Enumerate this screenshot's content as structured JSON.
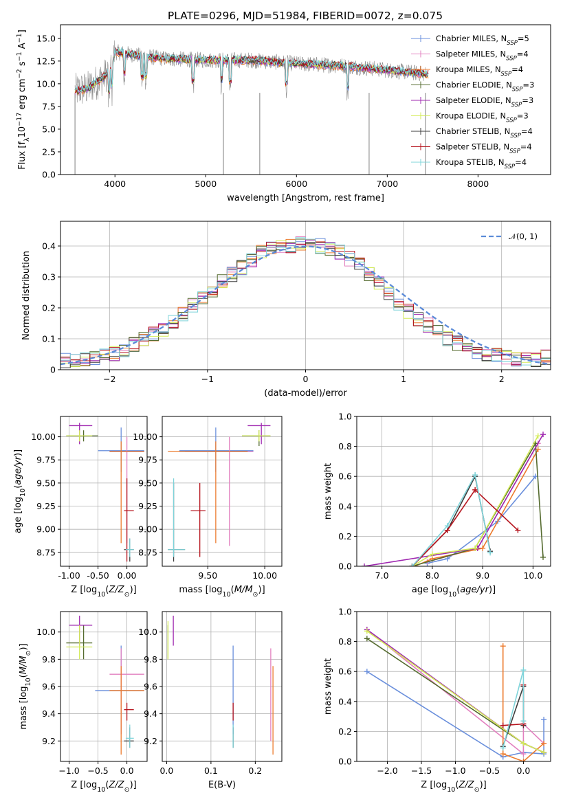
{
  "colors": {
    "Chabrier MILES": "#6a8fdc",
    "Salpeter MILES": "#e27fbf",
    "Kroupa MILES": "#ec7a2c",
    "Chabrier ELODIE": "#556b2f",
    "Salpeter ELODIE": "#9f28b0",
    "Kroupa ELODIE": "#d3eb57",
    "Chabrier STELIB": "#3d3d3d",
    "Salpeter STELIB": "#b5121b",
    "Kroupa STELIB": "#7fd4da",
    "data": "#8c8c8c"
  },
  "chart_data": [
    {
      "id": "spectrum",
      "type": "line",
      "title": "PLATE=0296, MJD=51984, FIBERID=0072, z=0.075",
      "xlabel": "wavelength [Angstrom, rest frame]",
      "ylabel": "Flux [f_λ 10^-17 erg cm^-2 s^-1 A^-1]",
      "xlim": [
        3400,
        8800
      ],
      "ylim": [
        0,
        16.5
      ],
      "xticks": [
        4000,
        5000,
        6000,
        7000,
        8000
      ],
      "yticks": [
        0.0,
        2.5,
        5.0,
        7.5,
        10.0,
        12.5,
        15.0
      ],
      "legend_placement": "top-right",
      "legend": [
        {
          "name": "Chabrier MILES",
          "nssp": "5"
        },
        {
          "name": "Salpeter MILES",
          "nssp": "4"
        },
        {
          "name": "Kroupa MILES",
          "nssp": "4"
        },
        {
          "name": "Chabrier ELODIE",
          "nssp": "3"
        },
        {
          "name": "Salpeter ELODIE",
          "nssp": "3"
        },
        {
          "name": "Kroupa ELODIE",
          "nssp": "3"
        },
        {
          "name": "Chabrier STELIB",
          "nssp": "4"
        },
        {
          "name": "Salpeter STELIB",
          "nssp": "4"
        },
        {
          "name": "Kroupa STELIB",
          "nssp": "4"
        }
      ],
      "data_continuum": [
        [
          3560,
          9.2
        ],
        [
          3700,
          9.5
        ],
        [
          3850,
          10.5
        ],
        [
          3950,
          11.5
        ],
        [
          4000,
          13.5
        ],
        [
          4200,
          13.2
        ],
        [
          4500,
          12.8
        ],
        [
          5000,
          12.6
        ],
        [
          5500,
          12.6
        ],
        [
          6000,
          12.2
        ],
        [
          6500,
          12.0
        ],
        [
          7000,
          11.5
        ],
        [
          7500,
          11.0
        ],
        [
          8000,
          10.6
        ],
        [
          8500,
          10.1
        ],
        [
          8800,
          9.9
        ]
      ]
    },
    {
      "id": "residuals",
      "type": "line",
      "xlabel": "(data-model)/error",
      "ylabel": "Normed distribution",
      "xlim": [
        -2.5,
        2.5
      ],
      "ylim": [
        0,
        0.48
      ],
      "xticks": [
        -2,
        -1,
        0,
        1,
        2
      ],
      "yticks": [
        0.0,
        0.1,
        0.2,
        0.3,
        0.4
      ],
      "reference_curve": "N(0,1)",
      "reference_label": "𝒩(0, 1)",
      "legend_placement": "top-right",
      "hist_centers": [
        -2.45,
        -2.35,
        -2.25,
        -2.15,
        -2.05,
        -1.95,
        -1.85,
        -1.75,
        -1.65,
        -1.55,
        -1.45,
        -1.35,
        -1.25,
        -1.15,
        -1.05,
        -0.95,
        -0.85,
        -0.75,
        -0.65,
        -0.55,
        -0.45,
        -0.35,
        -0.25,
        -0.15,
        -0.05,
        0.05,
        0.15,
        0.25,
        0.35,
        0.45,
        0.55,
        0.65,
        0.75,
        0.85,
        0.95,
        1.05,
        1.15,
        1.25,
        1.35,
        1.45,
        1.55,
        1.65,
        1.75,
        1.85,
        1.95,
        2.05,
        2.15,
        2.25,
        2.35,
        2.45
      ],
      "hist_base": [
        0.03,
        0.028,
        0.034,
        0.04,
        0.048,
        0.05,
        0.066,
        0.08,
        0.1,
        0.115,
        0.128,
        0.155,
        0.18,
        0.21,
        0.23,
        0.26,
        0.29,
        0.31,
        0.33,
        0.35,
        0.38,
        0.39,
        0.4,
        0.4,
        0.405,
        0.41,
        0.4,
        0.395,
        0.38,
        0.36,
        0.34,
        0.31,
        0.28,
        0.25,
        0.215,
        0.19,
        0.165,
        0.145,
        0.12,
        0.1,
        0.085,
        0.07,
        0.06,
        0.05,
        0.045,
        0.04,
        0.036,
        0.034,
        0.034,
        0.04
      ]
    },
    {
      "id": "age_vs_Z",
      "type": "scatter",
      "xlabel": "Z [log10(Z/Z⊙)]",
      "ylabel": "age  [log10(age/yr)]",
      "xlim": [
        -1.15,
        0.35
      ],
      "ylim": [
        8.6,
        10.22
      ],
      "xticks": [
        -1.0,
        -0.5,
        0.0
      ],
      "yticks": [
        8.75,
        9.0,
        9.25,
        9.5,
        9.75,
        10.0
      ],
      "points": [
        {
          "s": "Chabrier MILES",
          "x": -0.1,
          "y": 9.85,
          "xe": [
            -0.5,
            0.3
          ],
          "ye": [
            9.62,
            10.1
          ]
        },
        {
          "s": "Salpeter MILES",
          "x": 0.0,
          "y": 9.84,
          "xe": [
            -0.3,
            0.3
          ],
          "ye": [
            8.85,
            10.0
          ]
        },
        {
          "s": "Kroupa MILES",
          "x": -0.1,
          "y": 9.84,
          "xe": [
            -0.3,
            0.3
          ],
          "ye": [
            8.85,
            9.95
          ]
        },
        {
          "s": "Chabrier ELODIE",
          "x": -0.75,
          "y": 10.01,
          "xe": [
            -1.05,
            -0.5
          ],
          "ye": [
            9.95,
            10.07
          ]
        },
        {
          "s": "Salpeter ELODIE",
          "x": -0.82,
          "y": 10.12,
          "xe": [
            -1.0,
            -0.6
          ],
          "ye": [
            9.92,
            10.15
          ]
        },
        {
          "s": "Kroupa ELODIE",
          "x": -0.82,
          "y": 10.01,
          "xe": [
            -1.05,
            -0.6
          ],
          "ye": [
            9.95,
            10.07
          ]
        },
        {
          "s": "Chabrier STELIB",
          "x": 0.05,
          "y": 8.78,
          "xe": [
            -0.05,
            0.12
          ],
          "ye": [
            8.65,
            8.9
          ]
        },
        {
          "s": "Salpeter STELIB",
          "x": 0.0,
          "y": 9.2,
          "xe": [
            -0.05,
            0.12
          ],
          "ye": [
            8.65,
            9.55
          ]
        },
        {
          "s": "Kroupa STELIB",
          "x": 0.05,
          "y": 8.78,
          "xe": [
            -0.02,
            0.12
          ],
          "ye": [
            8.7,
            8.9
          ]
        }
      ]
    },
    {
      "id": "age_vs_mass",
      "type": "scatter",
      "xlabel": "mass [log10(M/M⊙)]",
      "ylabel": "",
      "xlim": [
        9.1,
        10.15
      ],
      "ylim": [
        8.6,
        10.22
      ],
      "xticks": [
        9.5,
        10.0
      ],
      "yticks": [
        8.75,
        9.0,
        9.25,
        9.5,
        9.75,
        10.0
      ],
      "points": [
        {
          "s": "Chabrier MILES",
          "x": 9.57,
          "y": 9.85,
          "xe": [
            9.25,
            9.9
          ],
          "ye": [
            9.62,
            10.1
          ]
        },
        {
          "s": "Salpeter MILES",
          "x": 9.69,
          "y": 9.84,
          "xe": [
            9.3,
            9.9
          ],
          "ye": [
            8.82,
            10.0
          ]
        },
        {
          "s": "Kroupa MILES",
          "x": 9.57,
          "y": 9.84,
          "xe": [
            9.15,
            9.85
          ],
          "ye": [
            8.85,
            9.95
          ]
        },
        {
          "s": "Chabrier ELODIE",
          "x": 9.95,
          "y": 10.01,
          "xe": [
            9.8,
            10.05
          ],
          "ye": [
            9.9,
            10.07
          ]
        },
        {
          "s": "Salpeter ELODIE",
          "x": 9.97,
          "y": 10.12,
          "xe": [
            9.85,
            10.05
          ],
          "ye": [
            9.92,
            10.15
          ]
        },
        {
          "s": "Kroupa ELODIE",
          "x": 9.95,
          "y": 10.01,
          "xe": [
            9.8,
            10.05
          ],
          "ye": [
            9.95,
            10.07
          ]
        },
        {
          "s": "Chabrier STELIB",
          "x": 9.2,
          "y": 8.78,
          "xe": [
            9.15,
            9.3
          ],
          "ye": [
            8.65,
            9.5
          ]
        },
        {
          "s": "Salpeter STELIB",
          "x": 9.43,
          "y": 9.2,
          "xe": [
            9.35,
            9.48
          ],
          "ye": [
            8.7,
            9.5
          ]
        },
        {
          "s": "Kroupa STELIB",
          "x": 9.2,
          "y": 8.78,
          "xe": [
            9.15,
            9.3
          ],
          "ye": [
            8.7,
            9.55
          ]
        }
      ]
    },
    {
      "id": "weight_vs_age",
      "type": "line",
      "xlabel": "age  [log10(age/yr)]",
      "ylabel": "mass weight",
      "xlim": [
        6.5,
        10.35
      ],
      "ylim": [
        0,
        1.0
      ],
      "xticks": [
        7,
        8,
        9,
        10
      ],
      "yticks": [
        0.0,
        0.2,
        0.4,
        0.6,
        0.8,
        1.0
      ],
      "series": [
        {
          "name": "Chabrier MILES",
          "x": [
            7.9,
            8.3,
            9.3,
            10.05
          ],
          "y": [
            0.02,
            0.05,
            0.3,
            0.6
          ]
        },
        {
          "name": "Salpeter MILES",
          "x": [
            7.9,
            8.9,
            10.1
          ],
          "y": [
            0.03,
            0.12,
            0.82
          ]
        },
        {
          "name": "Kroupa MILES",
          "x": [
            7.65,
            8.0,
            9.0,
            10.1
          ],
          "y": [
            0.0,
            0.05,
            0.12,
            0.78
          ]
        },
        {
          "name": "Chabrier ELODIE",
          "x": [
            7.6,
            8.85,
            10.05,
            10.2
          ],
          "y": [
            0.0,
            0.12,
            0.82,
            0.06
          ]
        },
        {
          "name": "Salpeter ELODIE",
          "x": [
            6.65,
            8.9,
            10.2
          ],
          "y": [
            0.0,
            0.12,
            0.88
          ]
        },
        {
          "name": "Kroupa ELODIE",
          "x": [
            7.6,
            8.0,
            8.85,
            10.1
          ],
          "y": [
            0.0,
            0.08,
            0.12,
            0.87
          ]
        },
        {
          "name": "Chabrier STELIB",
          "x": [
            7.6,
            8.3,
            8.85,
            9.15
          ],
          "y": [
            0.0,
            0.24,
            0.6,
            0.1
          ]
        },
        {
          "name": "Salpeter STELIB",
          "x": [
            7.6,
            8.3,
            8.85,
            9.7
          ],
          "y": [
            0.0,
            0.24,
            0.51,
            0.24
          ]
        },
        {
          "name": "Kroupa STELIB",
          "x": [
            7.6,
            8.3,
            8.85,
            9.15
          ],
          "y": [
            0.0,
            0.27,
            0.61,
            0.09
          ]
        }
      ]
    },
    {
      "id": "mass_vs_Z",
      "type": "scatter",
      "xlabel": "Z [log10(Z/Z⊙)]",
      "ylabel": "mass [log10(M/M⊙)]",
      "xlim": [
        -1.15,
        0.35
      ],
      "ylim": [
        9.05,
        10.15
      ],
      "xticks": [
        -1.0,
        -0.5,
        0.0
      ],
      "yticks": [
        9.2,
        9.4,
        9.6,
        9.8,
        10.0
      ],
      "points": [
        {
          "s": "Chabrier MILES",
          "x": -0.1,
          "y": 9.57,
          "xe": [
            -0.55,
            0.3
          ],
          "ye": [
            9.25,
            9.9
          ]
        },
        {
          "s": "Salpeter MILES",
          "x": -0.1,
          "y": 9.69,
          "xe": [
            -0.3,
            0.3
          ],
          "ye": [
            9.25,
            9.88
          ]
        },
        {
          "s": "Kroupa MILES",
          "x": -0.1,
          "y": 9.57,
          "xe": [
            -0.3,
            0.3
          ],
          "ye": [
            9.1,
            9.75
          ]
        },
        {
          "s": "Chabrier ELODIE",
          "x": -0.75,
          "y": 9.92,
          "xe": [
            -1.05,
            -0.6
          ],
          "ye": [
            9.8,
            10.05
          ]
        },
        {
          "s": "Salpeter ELODIE",
          "x": -0.82,
          "y": 10.05,
          "xe": [
            -1.0,
            -0.6
          ],
          "ye": [
            9.9,
            10.12
          ]
        },
        {
          "s": "Kroupa ELODIE",
          "x": -0.82,
          "y": 9.89,
          "xe": [
            -1.05,
            -0.6
          ],
          "ye": [
            9.8,
            10.05
          ]
        },
        {
          "s": "Chabrier STELIB",
          "x": 0.05,
          "y": 9.2,
          "xe": [
            -0.05,
            0.12
          ],
          "ye": [
            9.15,
            9.3
          ]
        },
        {
          "s": "Salpeter STELIB",
          "x": 0.0,
          "y": 9.43,
          "xe": [
            -0.05,
            0.12
          ],
          "ye": [
            9.35,
            9.48
          ]
        },
        {
          "s": "Kroupa STELIB",
          "x": 0.05,
          "y": 9.22,
          "xe": [
            -0.02,
            0.12
          ],
          "ye": [
            9.15,
            9.32
          ]
        }
      ]
    },
    {
      "id": "mass_vs_EBV",
      "type": "scatter",
      "xlabel": "E(B-V)",
      "ylabel": "",
      "xlim": [
        -0.01,
        0.26
      ],
      "ylim": [
        9.05,
        10.15
      ],
      "xticks": [
        0.0,
        0.1,
        0.2
      ],
      "yticks": [
        9.2,
        9.4,
        9.6,
        9.8,
        10.0
      ],
      "points": [
        {
          "s": "Chabrier MILES",
          "x": 0.15,
          "y": 9.57,
          "ye": [
            9.25,
            9.9
          ]
        },
        {
          "s": "Salpeter MILES",
          "x": 0.235,
          "y": 9.69,
          "ye": [
            9.2,
            9.88
          ]
        },
        {
          "s": "Kroupa MILES",
          "x": 0.24,
          "y": 9.57,
          "ye": [
            9.1,
            9.75
          ]
        },
        {
          "s": "Chabrier ELODIE",
          "x": 0.003,
          "y": 9.92,
          "ye": [
            9.8,
            10.05
          ]
        },
        {
          "s": "Salpeter ELODIE",
          "x": 0.015,
          "y": 10.02,
          "ye": [
            9.9,
            10.12
          ]
        },
        {
          "s": "Kroupa ELODIE",
          "x": 0.003,
          "y": 9.92,
          "ye": [
            9.8,
            10.08
          ]
        },
        {
          "s": "Chabrier STELIB",
          "x": 0.15,
          "y": 9.2,
          "ye": [
            9.15,
            9.3
          ]
        },
        {
          "s": "Salpeter STELIB",
          "x": 0.15,
          "y": 9.43,
          "ye": [
            9.35,
            9.48
          ]
        },
        {
          "s": "Kroupa STELIB",
          "x": 0.15,
          "y": 9.22,
          "ye": [
            9.15,
            9.32
          ]
        }
      ]
    },
    {
      "id": "weight_vs_Z",
      "type": "line",
      "xlabel": "Z [log10(Z/Z⊙)]",
      "ylabel": "mass weight",
      "xlim": [
        -2.45,
        0.4
      ],
      "ylim": [
        0,
        1.0
      ],
      "xticks": [
        -2.0,
        -1.5,
        -1.0,
        -0.5,
        0.0
      ],
      "yticks": [
        0.0,
        0.2,
        0.4,
        0.6,
        0.8,
        1.0
      ],
      "series": [
        {
          "name": "Chabrier MILES",
          "x": [
            -2.3,
            -0.3,
            0.0,
            0.3,
            0.3
          ],
          "y": [
            0.6,
            0.03,
            0.06,
            0.05,
            0.28
          ]
        },
        {
          "name": "Salpeter MILES",
          "x": [
            -2.3,
            0.0,
            0.0,
            0.3
          ],
          "y": [
            0.88,
            0.05,
            0.25,
            0.12
          ]
        },
        {
          "name": "Kroupa MILES",
          "x": [
            -0.3,
            -0.3,
            0.0,
            0.3
          ],
          "y": [
            0.77,
            0.05,
            0.0,
            0.12
          ]
        },
        {
          "name": "Chabrier ELODIE",
          "x": [
            -2.3,
            0.0,
            0.3
          ],
          "y": [
            0.82,
            0.12,
            0.06
          ]
        },
        {
          "name": "Salpeter ELODIE",
          "x": [
            -2.3,
            0.0,
            0.3
          ],
          "y": [
            0.88,
            0.12,
            0.06
          ]
        },
        {
          "name": "Kroupa ELODIE",
          "x": [
            -2.3,
            0.0,
            0.3
          ],
          "y": [
            0.87,
            0.12,
            0.06
          ]
        },
        {
          "name": "Chabrier STELIB",
          "x": [
            -0.3,
            0.0,
            0.0
          ],
          "y": [
            0.1,
            0.5,
            0.24
          ]
        },
        {
          "name": "Salpeter STELIB",
          "x": [
            -0.3,
            0.0,
            0.0
          ],
          "y": [
            0.24,
            0.25,
            0.51
          ]
        },
        {
          "name": "Kroupa STELIB",
          "x": [
            -0.3,
            0.0,
            0.0
          ],
          "y": [
            0.09,
            0.61,
            0.27
          ]
        }
      ]
    }
  ]
}
